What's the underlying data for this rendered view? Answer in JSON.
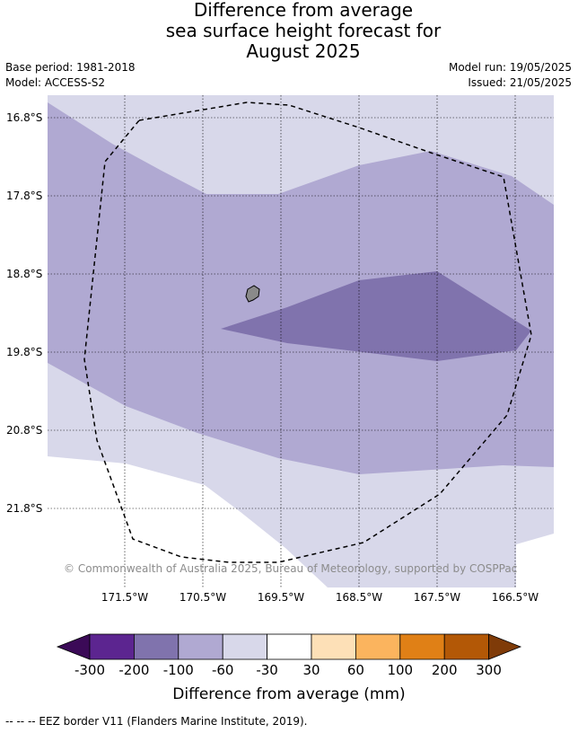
{
  "header": {
    "title_lines": [
      "Difference from average",
      "sea surface height forecast for",
      "August 2025"
    ],
    "base_period": "Base period: 1981-2018",
    "model": "Model: ACCESS-S2",
    "model_run": "Model run: 19/05/2025",
    "issued": "Issued: 21/05/2025"
  },
  "map": {
    "lat_labels": [
      "16.8°S",
      "17.8°S",
      "18.8°S",
      "19.8°S",
      "20.8°S",
      "21.8°S"
    ],
    "lon_labels": [
      "171.5°W",
      "170.5°W",
      "169.5°W",
      "168.5°W",
      "167.5°W",
      "166.5°W"
    ],
    "copyright": "© Commonwealth of Australia 2025, Bureau of Meteorology, supported by COSPPac",
    "colors": {
      "band_minus30_0": "#d8d8ea",
      "band_minus60_minus30": "#b0a9d2",
      "band_minus100_minus60": "#8073ad",
      "land": "#8a8a8a",
      "grid": "#000000"
    }
  },
  "colorbar": {
    "tick_labels": [
      "-300",
      "-200",
      "-100",
      "-60",
      "-30",
      "30",
      "60",
      "100",
      "200",
      "300"
    ],
    "colors": [
      "#3b0a57",
      "#5c2590",
      "#8073ad",
      "#b0a9d2",
      "#d8d8ea",
      "#ffffff",
      "#fde0b7",
      "#fbb45e",
      "#e08016",
      "#b35806",
      "#7f3b08"
    ],
    "label": "Difference from average (mm)"
  },
  "footnote": "-- -- -- EEZ border V11 (Flanders Marine Institute, 2019)."
}
